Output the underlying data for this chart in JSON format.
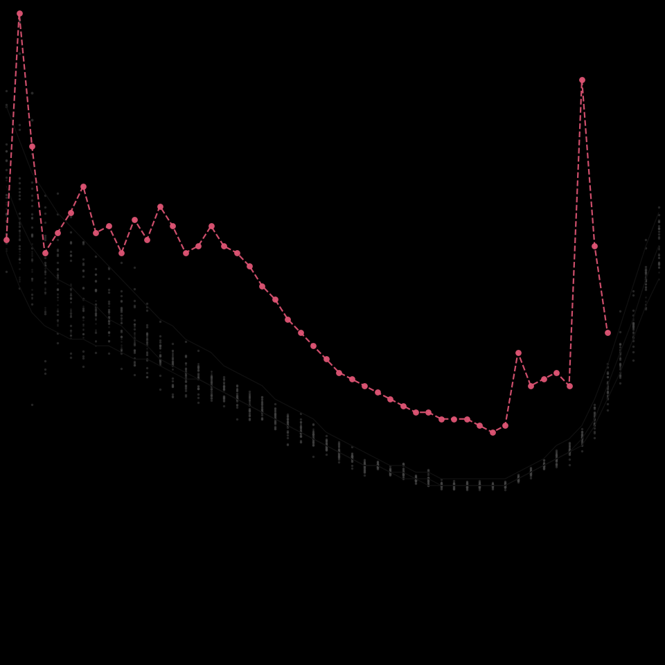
{
  "background_color": "#000000",
  "gray_dot_color": "#444444",
  "quantile_line_color": "#111111",
  "red_color": "#e05575",
  "n_weeks": 52,
  "ylim_min": 0,
  "ylim_max": 1.0,
  "xlim_min": 0.5,
  "xlim_max": 52.5,
  "quantile_5": [
    0.62,
    0.57,
    0.53,
    0.51,
    0.5,
    0.49,
    0.49,
    0.48,
    0.48,
    0.47,
    0.46,
    0.46,
    0.45,
    0.44,
    0.43,
    0.43,
    0.42,
    0.41,
    0.4,
    0.39,
    0.38,
    0.37,
    0.36,
    0.35,
    0.34,
    0.33,
    0.32,
    0.31,
    0.3,
    0.3,
    0.29,
    0.28,
    0.28,
    0.27,
    0.27,
    0.27,
    0.27,
    0.27,
    0.27,
    0.27,
    0.28,
    0.29,
    0.3,
    0.31,
    0.32,
    0.33,
    0.36,
    0.4,
    0.44,
    0.49,
    0.54,
    0.58
  ],
  "quantile_50": [
    0.72,
    0.67,
    0.63,
    0.6,
    0.58,
    0.57,
    0.55,
    0.54,
    0.52,
    0.51,
    0.49,
    0.48,
    0.46,
    0.45,
    0.44,
    0.43,
    0.42,
    0.41,
    0.4,
    0.39,
    0.38,
    0.37,
    0.36,
    0.35,
    0.34,
    0.33,
    0.32,
    0.31,
    0.3,
    0.3,
    0.29,
    0.29,
    0.28,
    0.28,
    0.27,
    0.27,
    0.27,
    0.27,
    0.27,
    0.27,
    0.28,
    0.29,
    0.3,
    0.31,
    0.32,
    0.34,
    0.37,
    0.42,
    0.47,
    0.52,
    0.58,
    0.63
  ],
  "quantile_95": [
    0.84,
    0.79,
    0.74,
    0.71,
    0.68,
    0.66,
    0.64,
    0.62,
    0.6,
    0.58,
    0.56,
    0.54,
    0.52,
    0.51,
    0.49,
    0.48,
    0.47,
    0.45,
    0.44,
    0.43,
    0.42,
    0.4,
    0.39,
    0.38,
    0.37,
    0.35,
    0.34,
    0.33,
    0.32,
    0.31,
    0.3,
    0.3,
    0.29,
    0.29,
    0.28,
    0.28,
    0.28,
    0.28,
    0.28,
    0.28,
    0.29,
    0.3,
    0.31,
    0.33,
    0.34,
    0.36,
    0.4,
    0.45,
    0.51,
    0.57,
    0.63,
    0.68
  ],
  "red_weeks": [
    1,
    2,
    3,
    4,
    5,
    6,
    7,
    8,
    9,
    10,
    11,
    12,
    13,
    14,
    15,
    16,
    17,
    18,
    19,
    20,
    21,
    22,
    23,
    24,
    25,
    26,
    27,
    28,
    29,
    30,
    31,
    32,
    33,
    34,
    35,
    36,
    37,
    38,
    39,
    40,
    41,
    42,
    43,
    44,
    45,
    46,
    47,
    48
  ],
  "red_vals": [
    0.64,
    0.98,
    0.78,
    0.62,
    0.65,
    0.68,
    0.72,
    0.65,
    0.66,
    0.62,
    0.67,
    0.64,
    0.69,
    0.66,
    0.62,
    0.63,
    0.66,
    0.63,
    0.62,
    0.6,
    0.57,
    0.55,
    0.52,
    0.5,
    0.48,
    0.46,
    0.44,
    0.43,
    0.42,
    0.41,
    0.4,
    0.39,
    0.38,
    0.38,
    0.37,
    0.37,
    0.37,
    0.36,
    0.35,
    0.36,
    0.47,
    0.42,
    0.43,
    0.44,
    0.42,
    0.88,
    0.63,
    0.5
  ],
  "n_bg_years": 20,
  "seed": 42
}
